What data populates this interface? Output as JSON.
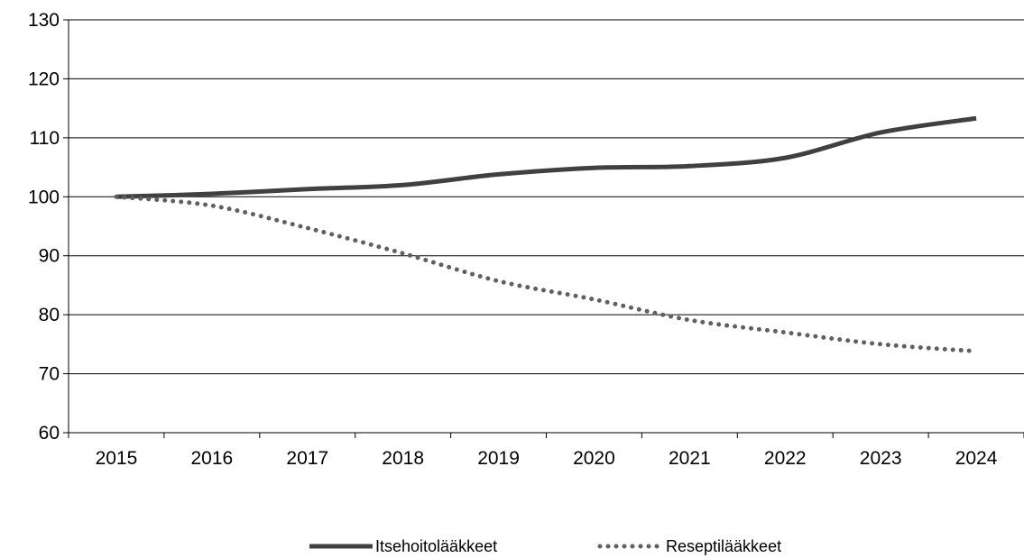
{
  "chart_data": {
    "type": "line",
    "categories": [
      "2015",
      "2016",
      "2017",
      "2018",
      "2019",
      "2020",
      "2021",
      "2022",
      "2023",
      "2024"
    ],
    "series": [
      {
        "name": "Itsehoitolääkkeet",
        "style": "solid",
        "color": "#404040",
        "values": [
          100,
          100.5,
          101.3,
          102,
          103.8,
          104.9,
          105.2,
          106.6,
          110.9,
          113.3
        ]
      },
      {
        "name": "Reseptilääkkeet",
        "style": "dotted",
        "color": "#606060",
        "values": [
          100,
          98.5,
          94.7,
          90.4,
          85.7,
          82.6,
          79.1,
          77,
          75,
          73.8
        ]
      }
    ],
    "ylim": [
      60,
      130
    ],
    "yticks": [
      "60",
      "70",
      "80",
      "90",
      "100",
      "110",
      "120",
      "130"
    ],
    "grid": true,
    "legend_position": "bottom"
  }
}
